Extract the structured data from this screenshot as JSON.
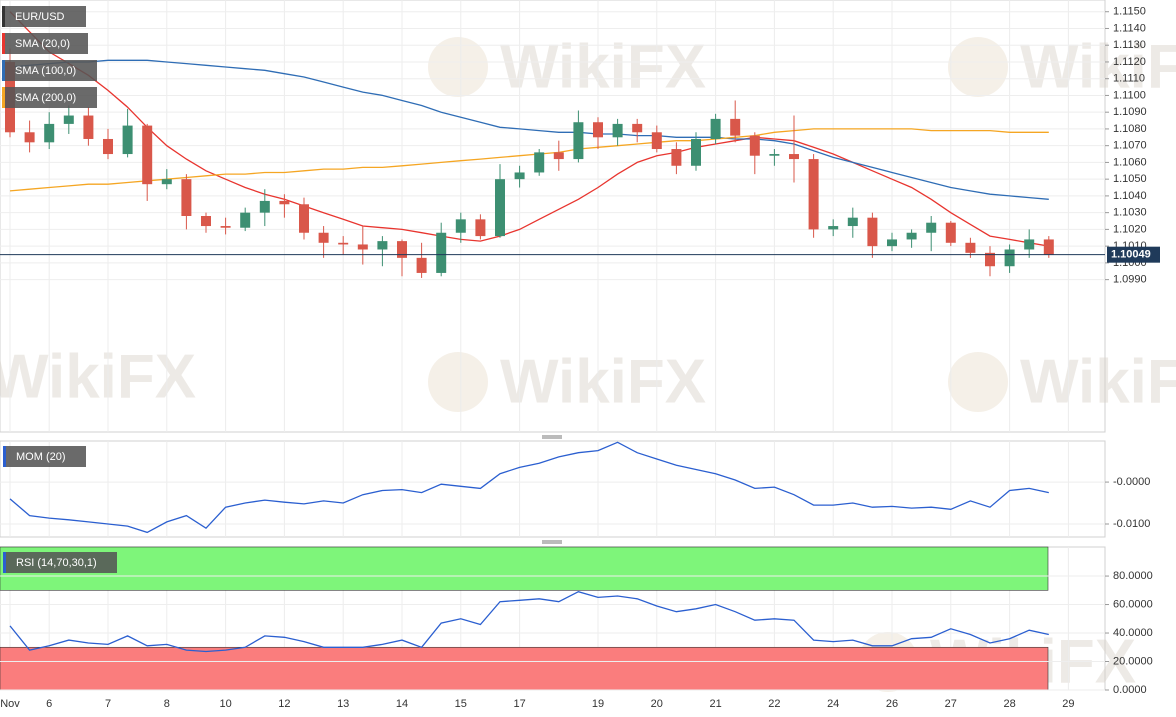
{
  "chart_data": [
    {
      "type": "candlestick",
      "name": "EUR/USD",
      "categories": [
        "Nov",
        null,
        "6",
        null,
        null,
        "7",
        null,
        null,
        "8",
        null,
        null,
        "10",
        null,
        null,
        "12",
        null,
        null,
        "13",
        null,
        null,
        "14",
        null,
        null,
        "15",
        null,
        null,
        "17",
        null,
        null,
        null,
        "19",
        null,
        null,
        "20",
        null,
        null,
        "21",
        null,
        null,
        "22",
        null,
        null,
        "24",
        null,
        null,
        "26",
        null,
        null,
        "27",
        null,
        null,
        "28",
        null,
        null,
        "29"
      ],
      "open": [
        1.112,
        1.1078,
        1.1072,
        1.1083,
        1.1088,
        1.1074,
        1.1065,
        1.1082,
        1.1047,
        1.105,
        1.1028,
        1.1022,
        1.1021,
        1.103,
        1.1037,
        1.1035,
        1.1018,
        1.1012,
        1.1011,
        1.1008,
        1.1013,
        1.1003,
        1.0994,
        1.1018,
        1.1026,
        1.1016,
        1.105,
        1.1054,
        1.1066,
        1.1062,
        1.1084,
        1.1075,
        1.1083,
        1.1078,
        1.1068,
        1.1058,
        1.1074,
        1.1086,
        1.1076,
        1.1064,
        1.1065,
        1.1062,
        1.102,
        1.1022,
        1.1027,
        1.101,
        1.1014,
        1.1018,
        1.1024,
        1.1012,
        1.1006,
        1.0998,
        1.1008,
        1.1014,
        null
      ],
      "high": [
        1.1128,
        1.1085,
        1.109,
        1.1094,
        1.1093,
        1.108,
        1.1092,
        1.1083,
        1.1056,
        1.1053,
        1.103,
        1.1027,
        1.1033,
        1.1044,
        1.1041,
        1.1039,
        1.1022,
        1.1016,
        1.1022,
        1.1016,
        1.1014,
        1.1012,
        1.1024,
        1.103,
        1.1029,
        1.1059,
        1.1058,
        1.1068,
        1.1073,
        1.1091,
        1.1087,
        1.1086,
        1.1086,
        1.1082,
        1.1072,
        1.1078,
        1.1089,
        1.1097,
        1.1078,
        1.1068,
        1.1088,
        1.1065,
        1.1026,
        1.1033,
        1.103,
        1.1018,
        1.102,
        1.1028,
        1.1025,
        1.1015,
        1.101,
        1.1011,
        1.102,
        1.1016,
        null
      ],
      "low": [
        1.1075,
        1.1066,
        1.1068,
        1.1077,
        1.107,
        1.1062,
        1.1063,
        1.1037,
        1.1044,
        1.102,
        1.1018,
        1.1017,
        1.1019,
        1.1022,
        1.1027,
        1.1014,
        1.1003,
        1.1005,
        1.0999,
        1.0998,
        1.0992,
        1.0991,
        1.0992,
        1.1012,
        1.1014,
        1.1015,
        1.1045,
        1.1052,
        1.1055,
        1.106,
        1.1068,
        1.107,
        1.1072,
        1.1066,
        1.1053,
        1.1055,
        1.1071,
        1.1072,
        1.1053,
        1.1058,
        1.1048,
        1.1015,
        1.1016,
        1.1015,
        1.1003,
        1.1007,
        1.1009,
        1.1007,
        1.101,
        1.1003,
        1.0992,
        1.0994,
        1.1003,
        1.1003,
        null
      ],
      "close": [
        1.1078,
        1.1072,
        1.1083,
        1.1088,
        1.1074,
        1.1065,
        1.1082,
        1.1047,
        1.105,
        1.1028,
        1.1022,
        1.1021,
        1.103,
        1.1037,
        1.1035,
        1.1018,
        1.1012,
        1.1011,
        1.1008,
        1.1013,
        1.1003,
        1.0994,
        1.1018,
        1.1026,
        1.1016,
        1.105,
        1.1054,
        1.1066,
        1.1062,
        1.1084,
        1.1075,
        1.1083,
        1.1078,
        1.1068,
        1.1058,
        1.1074,
        1.1086,
        1.1076,
        1.1064,
        1.1065,
        1.1062,
        1.102,
        1.1022,
        1.1027,
        1.101,
        1.1014,
        1.1018,
        1.1024,
        1.1012,
        1.1006,
        1.0998,
        1.1008,
        1.1014,
        1.1005,
        null
      ],
      "up_color": "#3d8f72",
      "down_color": "#d9574a",
      "series": [
        {
          "name": "SMA (20,0)",
          "color": "#e8352f",
          "values": [
            1.115,
            1.1138,
            1.1126,
            1.1119,
            1.1112,
            1.1103,
            1.1093,
            1.1081,
            1.107,
            1.1062,
            1.1055,
            1.105,
            1.1045,
            1.1041,
            1.1038,
            1.1034,
            1.103,
            1.1026,
            1.1022,
            1.1021,
            1.102,
            1.1018,
            1.1016,
            1.1014,
            1.1013,
            1.1016,
            1.102,
            1.1026,
            1.1032,
            1.1038,
            1.1045,
            1.1053,
            1.106,
            1.1064,
            1.1066,
            1.1069,
            1.1071,
            1.1073,
            1.1075,
            1.1074,
            1.1073,
            1.1069,
            1.1065,
            1.106,
            1.1055,
            1.105,
            1.1045,
            1.1038,
            1.103,
            1.1023,
            1.1016,
            1.1014,
            1.1012,
            1.101,
            null
          ]
        },
        {
          "name": "SMA (100,0)",
          "color": "#2f6db5",
          "values": [
            1.1117,
            1.1118,
            1.1119,
            1.112,
            1.112,
            1.1121,
            1.1121,
            1.1121,
            1.112,
            1.1119,
            1.1118,
            1.1117,
            1.1116,
            1.1115,
            1.1113,
            1.1111,
            1.1108,
            1.1105,
            1.1102,
            1.11,
            1.1097,
            1.1094,
            1.109,
            1.1087,
            1.1084,
            1.1081,
            1.108,
            1.1079,
            1.1078,
            1.1078,
            1.1077,
            1.1077,
            1.1076,
            1.1076,
            1.1075,
            1.1075,
            1.1075,
            1.1074,
            1.1074,
            1.1073,
            1.1071,
            1.1067,
            1.1063,
            1.106,
            1.1057,
            1.1054,
            1.1051,
            1.1048,
            1.1045,
            1.1043,
            1.1041,
            1.104,
            1.1039,
            1.1038,
            null
          ]
        },
        {
          "name": "SMA (200,0)",
          "color": "#f5a623",
          "values": [
            1.1043,
            1.1044,
            1.1045,
            1.1046,
            1.1047,
            1.1047,
            1.1048,
            1.1049,
            1.105,
            1.1051,
            1.1052,
            1.1053,
            1.1053,
            1.1054,
            1.1054,
            1.1055,
            1.1056,
            1.1056,
            1.1057,
            1.1057,
            1.1058,
            1.1059,
            1.106,
            1.1061,
            1.1062,
            1.1063,
            1.1064,
            1.1065,
            1.1066,
            1.1068,
            1.1069,
            1.107,
            1.1071,
            1.1072,
            1.1073,
            1.1073,
            1.1074,
            1.1075,
            1.1076,
            1.1078,
            1.1079,
            1.108,
            1.108,
            1.108,
            1.108,
            1.108,
            1.108,
            1.1079,
            1.1079,
            1.1079,
            1.1079,
            1.1078,
            1.1078,
            1.1078,
            null
          ]
        }
      ],
      "last_price": {
        "value": 1.10049,
        "label": "1.10049"
      },
      "ylim": [
        1.0899,
        1.1157
      ],
      "yticks": [
        {
          "value": 1.099,
          "label": "1.0990"
        },
        {
          "value": 1.1,
          "label": "1.1000"
        },
        {
          "value": 1.101,
          "label": "1.1010"
        },
        {
          "value": 1.102,
          "label": "1.1020"
        },
        {
          "value": 1.103,
          "label": "1.1030"
        },
        {
          "value": 1.104,
          "label": "1.1040"
        },
        {
          "value": 1.105,
          "label": "1.1050"
        },
        {
          "value": 1.106,
          "label": "1.1060"
        },
        {
          "value": 1.107,
          "label": "1.1070"
        },
        {
          "value": 1.108,
          "label": "1.1080"
        },
        {
          "value": 1.109,
          "label": "1.1090"
        },
        {
          "value": 1.11,
          "label": "1.1100"
        },
        {
          "value": 1.111,
          "label": "1.1110"
        },
        {
          "value": 1.112,
          "label": "1.1120"
        },
        {
          "value": 1.113,
          "label": "1.1130"
        },
        {
          "value": 1.114,
          "label": "1.1140"
        },
        {
          "value": 1.115,
          "label": "1.1150"
        }
      ],
      "grid": true,
      "watermark": "WikiFX"
    },
    {
      "type": "line",
      "series": [
        {
          "name": "MOM (20)",
          "color": "#2b5fd0",
          "values": [
            -0.004,
            -0.008,
            -0.0086,
            -0.009,
            -0.0095,
            -0.01,
            -0.0105,
            -0.012,
            -0.0095,
            -0.008,
            -0.011,
            -0.006,
            -0.005,
            -0.0043,
            -0.0048,
            -0.0052,
            -0.0045,
            -0.005,
            -0.003,
            -0.002,
            -0.0018,
            -0.0025,
            -0.0005,
            -0.001,
            -0.0015,
            0.002,
            0.0035,
            0.0045,
            0.006,
            0.007,
            0.0075,
            0.0095,
            0.007,
            0.0055,
            0.004,
            0.003,
            0.002,
            0.0005,
            -0.0015,
            -0.0012,
            -0.003,
            -0.0055,
            -0.0055,
            -0.005,
            -0.006,
            -0.0058,
            -0.0062,
            -0.006,
            -0.0065,
            -0.0045,
            -0.006,
            -0.002,
            -0.0015,
            -0.0025,
            null
          ]
        }
      ],
      "ylim": [
        -0.0131,
        0.0098
      ],
      "yticks": [
        {
          "value": 0,
          "label": "-0.0000"
        },
        {
          "value": -0.01,
          "label": "-0.0100"
        }
      ],
      "grid": true
    },
    {
      "type": "line",
      "series": [
        {
          "name": "RSI (14,70,30,1)",
          "color": "#2b5fd0",
          "values": [
            45,
            28,
            31,
            35,
            33,
            32,
            38,
            31,
            32,
            28,
            27,
            28,
            30,
            38,
            37,
            34,
            30,
            30,
            30,
            32,
            35,
            30,
            47,
            50,
            46,
            62,
            63,
            64,
            62,
            69,
            65,
            66,
            64,
            59,
            55,
            57,
            60,
            55,
            49,
            50,
            49,
            35,
            34,
            35,
            31,
            31,
            36,
            37,
            43,
            39,
            33,
            36,
            42,
            39,
            null
          ]
        }
      ],
      "levels": [
        30,
        70
      ],
      "ylim": [
        0,
        100.4
      ],
      "yticks": [
        {
          "value": 0,
          "label": "0.0000"
        },
        {
          "value": 20,
          "label": "20.0000"
        },
        {
          "value": 40,
          "label": "40.0000"
        },
        {
          "value": 60,
          "label": "60.0000"
        },
        {
          "value": 80,
          "label": "80.0000"
        }
      ],
      "grid": true
    }
  ]
}
